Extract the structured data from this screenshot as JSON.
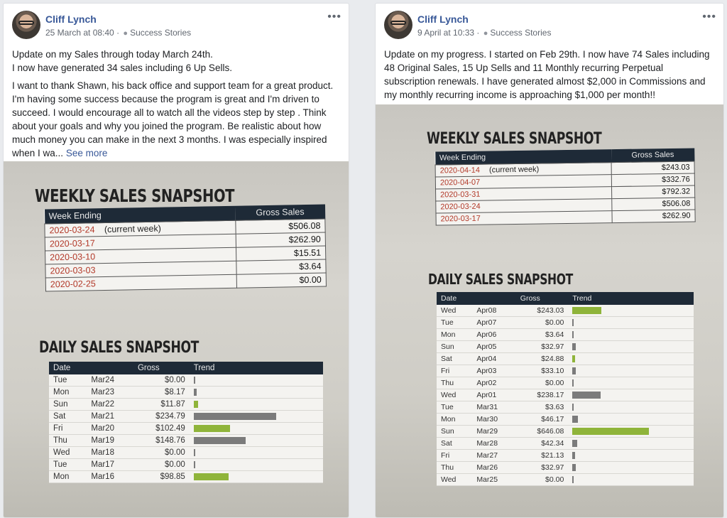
{
  "posts": [
    {
      "author": "Cliff Lynch",
      "date": "25 March at 08:40",
      "category": "Success Stories",
      "paragraphs": [
        "Update on my Sales through today March 24th.\nI now have generated 34 sales including 6 Up Sells.",
        "I want to thank Shawn, his back office and support team for a great product. I'm having some success because the program is great and I'm driven to succeed. I would encourage all to watch all the videos step by step . Think about your goals and why you joined the program. Be realistic about how much money you can make in the next 3 months. I was especially inspired when I wa..."
      ],
      "see_more": "See more",
      "photo": {
        "weekly_title": "WEEKLY SALES SNAPSHOT",
        "weekly_headers": [
          "Week Ending",
          "Gross Sales"
        ],
        "weekly_rows": [
          {
            "week": "2020-03-24",
            "note": "(current week)",
            "amount": "$506.08"
          },
          {
            "week": "2020-03-17",
            "note": "",
            "amount": "$262.90"
          },
          {
            "week": "2020-03-10",
            "note": "",
            "amount": "$15.51"
          },
          {
            "week": "2020-03-03",
            "note": "",
            "amount": "$3.64"
          },
          {
            "week": "2020-02-25",
            "note": "",
            "amount": "$0.00"
          }
        ],
        "daily_title": "DAILY SALES SNAPSHOT",
        "daily_headers": [
          "Date",
          "",
          "Gross",
          "Trend"
        ],
        "daily_rows": [
          {
            "day": "Tue",
            "date": "Mar24",
            "gross": "$0.00",
            "trend": 0.0,
            "color": "gray"
          },
          {
            "day": "Mon",
            "date": "Mar23",
            "gross": "$8.17",
            "trend": 0.035,
            "color": "gray"
          },
          {
            "day": "Sun",
            "date": "Mar22",
            "gross": "$11.87",
            "trend": 0.05,
            "color": "green"
          },
          {
            "day": "Sat",
            "date": "Mar21",
            "gross": "$234.79",
            "trend": 1.0,
            "color": "gray"
          },
          {
            "day": "Fri",
            "date": "Mar20",
            "gross": "$102.49",
            "trend": 0.44,
            "color": "green"
          },
          {
            "day": "Thu",
            "date": "Mar19",
            "gross": "$148.76",
            "trend": 0.63,
            "color": "gray"
          },
          {
            "day": "Wed",
            "date": "Mar18",
            "gross": "$0.00",
            "trend": 0.0,
            "color": "gray"
          },
          {
            "day": "Tue",
            "date": "Mar17",
            "gross": "$0.00",
            "trend": 0.0,
            "color": "gray"
          },
          {
            "day": "Mon",
            "date": "Mar16",
            "gross": "$98.85",
            "trend": 0.42,
            "color": "green"
          }
        ]
      }
    },
    {
      "author": "Cliff Lynch",
      "date": "9 April at 10:33",
      "category": "Success Stories",
      "paragraphs": [
        "Update on my progress. I started on Feb 29th. I now have 74 Sales including 48 Original Sales, 15 Up Sells and 11 Monthly recurring Perpetual subscription renewals. I have generated almost $2,000 in Commissions and my monthly recurring income is approaching $1,000 per month!!"
      ],
      "see_more": "",
      "photo": {
        "weekly_title": "WEEKLY SALES SNAPSHOT",
        "weekly_headers": [
          "Week Ending",
          "Gross Sales"
        ],
        "weekly_rows": [
          {
            "week": "2020-04-14",
            "note": "(current week)",
            "amount": "$243.03"
          },
          {
            "week": "2020-04-07",
            "note": "",
            "amount": "$332.76"
          },
          {
            "week": "2020-03-31",
            "note": "",
            "amount": "$792.32"
          },
          {
            "week": "2020-03-24",
            "note": "",
            "amount": "$506.08"
          },
          {
            "week": "2020-03-17",
            "note": "",
            "amount": "$262.90"
          }
        ],
        "daily_title": "DAILY SALES SNAPSHOT",
        "daily_headers": [
          "Date",
          "",
          "Gross",
          "Trend"
        ],
        "daily_rows": [
          {
            "day": "Wed",
            "date": "Apr08",
            "gross": "$243.03",
            "trend": 0.38,
            "color": "green"
          },
          {
            "day": "Tue",
            "date": "Apr07",
            "gross": "$0.00",
            "trend": 0.0,
            "color": "gray"
          },
          {
            "day": "Mon",
            "date": "Apr06",
            "gross": "$3.64",
            "trend": 0.006,
            "color": "gray"
          },
          {
            "day": "Sun",
            "date": "Apr05",
            "gross": "$32.97",
            "trend": 0.05,
            "color": "gray"
          },
          {
            "day": "Sat",
            "date": "Apr04",
            "gross": "$24.88",
            "trend": 0.04,
            "color": "green"
          },
          {
            "day": "Fri",
            "date": "Apr03",
            "gross": "$33.10",
            "trend": 0.05,
            "color": "gray"
          },
          {
            "day": "Thu",
            "date": "Apr02",
            "gross": "$0.00",
            "trend": 0.0,
            "color": "gray"
          },
          {
            "day": "Wed",
            "date": "Apr01",
            "gross": "$238.17",
            "trend": 0.37,
            "color": "gray"
          },
          {
            "day": "Tue",
            "date": "Mar31",
            "gross": "$3.63",
            "trend": 0.006,
            "color": "gray"
          },
          {
            "day": "Mon",
            "date": "Mar30",
            "gross": "$46.17",
            "trend": 0.07,
            "color": "gray"
          },
          {
            "day": "Sun",
            "date": "Mar29",
            "gross": "$646.08",
            "trend": 1.0,
            "color": "green"
          },
          {
            "day": "Sat",
            "date": "Mar28",
            "gross": "$42.34",
            "trend": 0.066,
            "color": "gray"
          },
          {
            "day": "Fri",
            "date": "Mar27",
            "gross": "$21.13",
            "trend": 0.033,
            "color": "gray"
          },
          {
            "day": "Thu",
            "date": "Mar26",
            "gross": "$32.97",
            "trend": 0.05,
            "color": "gray"
          },
          {
            "day": "Wed",
            "date": "Mar25",
            "gross": "$0.00",
            "trend": 0.0,
            "color": "gray"
          }
        ]
      }
    }
  ],
  "colors": {
    "link": "#385898",
    "bar_green": "#8fb43a",
    "bar_gray": "#7b7b7b",
    "table_header": "#1e2a37",
    "week_text": "#b33a2a"
  }
}
